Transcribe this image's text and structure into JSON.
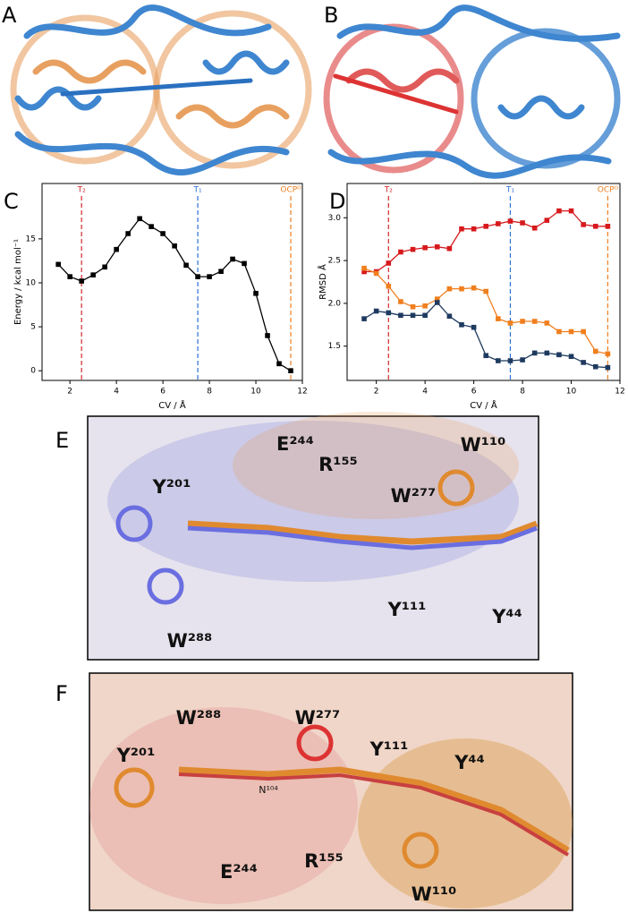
{
  "panel_labels": [
    "A",
    "B",
    "C",
    "D",
    "E",
    "F"
  ],
  "chart_data": [
    {
      "type": "line",
      "xlabel": "CV / Å",
      "ylabel": "Energy / kcal mol⁻¹",
      "x": [
        1.5,
        2,
        2.5,
        3,
        3.5,
        4,
        4.5,
        5,
        5.5,
        6,
        6.5,
        7,
        7.5,
        8,
        8.5,
        9,
        9.5,
        10,
        10.5,
        11,
        11.5
      ],
      "series": [
        {
          "color": "#000000",
          "values": [
            12.1,
            10.7,
            10.2,
            10.9,
            11.8,
            13.8,
            15.6,
            17.3,
            16.4,
            15.6,
            14.2,
            12.0,
            10.7,
            10.7,
            11.3,
            12.7,
            12.2,
            8.8,
            4.0,
            0.8,
            0.0
          ]
        }
      ],
      "xlim": [
        0.8,
        12
      ],
      "ylim": [
        -1.1,
        21.3
      ],
      "xticks": [
        2,
        4,
        6,
        8,
        10,
        12
      ],
      "yticks": [
        0,
        5,
        10,
        15
      ],
      "markers": [
        {
          "x": 2.5,
          "label": "T₂",
          "color": "#d62728"
        },
        {
          "x": 7.5,
          "label": "T₁",
          "color": "#2c6fd6"
        },
        {
          "x": 11.5,
          "label": "OCPᴼ",
          "color": "#f07f1e"
        }
      ]
    },
    {
      "type": "line",
      "xlabel": "CV / Å",
      "ylabel": "RMSD Å",
      "x": [
        1.5,
        2,
        2.5,
        3,
        3.5,
        4,
        4.5,
        5,
        5.5,
        6,
        6.5,
        7,
        7.5,
        8,
        8.5,
        9,
        9.5,
        10,
        10.5,
        11,
        11.5
      ],
      "series": [
        {
          "color": "#d7191c",
          "values": [
            2.37,
            2.37,
            2.47,
            2.6,
            2.63,
            2.65,
            2.66,
            2.64,
            2.87,
            2.87,
            2.9,
            2.93,
            2.96,
            2.94,
            2.88,
            2.97,
            3.08,
            3.08,
            2.92,
            2.9,
            2.9
          ]
        },
        {
          "color": "#f07f1e",
          "values": [
            2.41,
            2.35,
            2.2,
            2.02,
            1.96,
            1.97,
            2.05,
            2.17,
            2.17,
            2.18,
            2.14,
            1.82,
            1.77,
            1.79,
            1.79,
            1.77,
            1.67,
            1.67,
            1.67,
            1.44,
            1.41
          ]
        },
        {
          "color": "#1f3a5f",
          "values": [
            1.82,
            1.91,
            1.89,
            1.86,
            1.86,
            1.86,
            2.01,
            1.85,
            1.75,
            1.72,
            1.39,
            1.33,
            1.33,
            1.34,
            1.42,
            1.42,
            1.4,
            1.38,
            1.31,
            1.26,
            1.25
          ]
        }
      ],
      "xlim": [
        0.8,
        12
      ],
      "ylim": [
        1.1,
        3.4
      ],
      "xticks": [
        2,
        4,
        6,
        8,
        10,
        12
      ],
      "yticks": [
        1.5,
        {
          "value": 2,
          "label": "2.0"
        },
        2.5,
        {
          "value": 3,
          "label": "3.0"
        }
      ],
      "markers": [
        {
          "x": 2.5,
          "label": "T₂",
          "color": "#d62728"
        },
        {
          "x": 7.5,
          "label": "T₁",
          "color": "#2c6fd6"
        },
        {
          "x": 11.5,
          "label": "OCPᴼ",
          "color": "#f07f1e"
        }
      ]
    }
  ],
  "panel_e": {
    "labels": [
      "E²⁴⁴",
      "R¹⁵⁵",
      "W¹¹⁰",
      "Y²⁰¹",
      "W²⁷⁷",
      "Y¹¹¹",
      "Y⁴⁴",
      "W²⁸⁸"
    ]
  },
  "panel_f": {
    "labels": [
      "W²⁸⁸",
      "W²⁷⁷",
      "Y¹¹¹",
      "Y⁴⁴",
      "Y²⁰¹",
      "N¹⁰⁴",
      "E²⁴⁴",
      "R¹⁵⁵",
      "W¹¹⁰"
    ]
  }
}
